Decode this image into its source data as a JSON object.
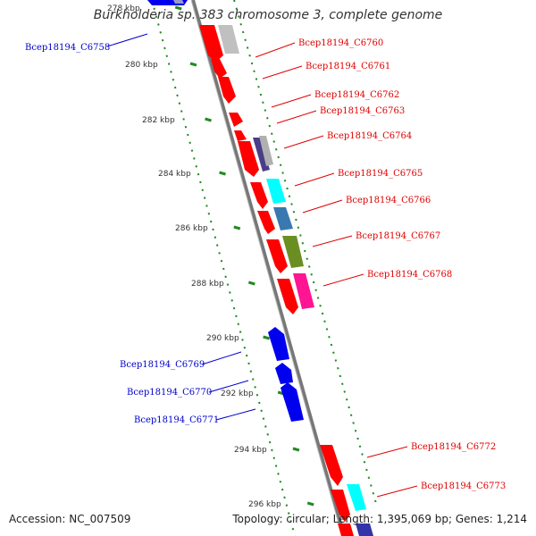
{
  "title": "Burkholderia sp. 383 chromosome 3, complete genome",
  "footer": {
    "accession": "Accession: NC_007509",
    "summary": "Topology: circular; Length: 1,395,069 bp; Genes: 1,214"
  },
  "colors": {
    "forward_gene": "#ff0000",
    "reverse_gene": "#0000ee",
    "tick": "#228b22",
    "backbone": "#888888",
    "label_forward": "#e00000",
    "label_reverse": "#0000cc"
  },
  "scale": {
    "unit": "kbp",
    "ticks": [
      "278 kbp",
      "280 kbp",
      "282 kbp",
      "284 kbp",
      "286 kbp",
      "288 kbp",
      "290 kbp",
      "292 kbp",
      "294 kbp",
      "296 kbp"
    ]
  },
  "genes": [
    {
      "id": "Bcep18194_C6758",
      "strand": "reverse",
      "label": "Bcep18194_C6758"
    },
    {
      "id": "Bcep18194_C6760",
      "strand": "forward",
      "label": "Bcep18194_C6760"
    },
    {
      "id": "Bcep18194_C6761",
      "strand": "forward",
      "label": "Bcep18194_C6761"
    },
    {
      "id": "Bcep18194_C6762",
      "strand": "forward",
      "label": "Bcep18194_C6762"
    },
    {
      "id": "Bcep18194_C6763",
      "strand": "forward",
      "label": "Bcep18194_C6763"
    },
    {
      "id": "Bcep18194_C6764",
      "strand": "forward",
      "label": "Bcep18194_C6764"
    },
    {
      "id": "Bcep18194_C6765",
      "strand": "forward",
      "label": "Bcep18194_C6765"
    },
    {
      "id": "Bcep18194_C6766",
      "strand": "forward",
      "label": "Bcep18194_C6766"
    },
    {
      "id": "Bcep18194_C6767",
      "strand": "forward",
      "label": "Bcep18194_C6767"
    },
    {
      "id": "Bcep18194_C6768",
      "strand": "forward",
      "label": "Bcep18194_C6768"
    },
    {
      "id": "Bcep18194_C6769",
      "strand": "reverse",
      "label": "Bcep18194_C6769"
    },
    {
      "id": "Bcep18194_C6770",
      "strand": "reverse",
      "label": "Bcep18194_C6770"
    },
    {
      "id": "Bcep18194_C6771",
      "strand": "reverse",
      "label": "Bcep18194_C6771"
    },
    {
      "id": "Bcep18194_C6772",
      "strand": "forward",
      "label": "Bcep18194_C6772"
    },
    {
      "id": "Bcep18194_C6773",
      "strand": "forward",
      "label": "Bcep18194_C6773"
    }
  ]
}
